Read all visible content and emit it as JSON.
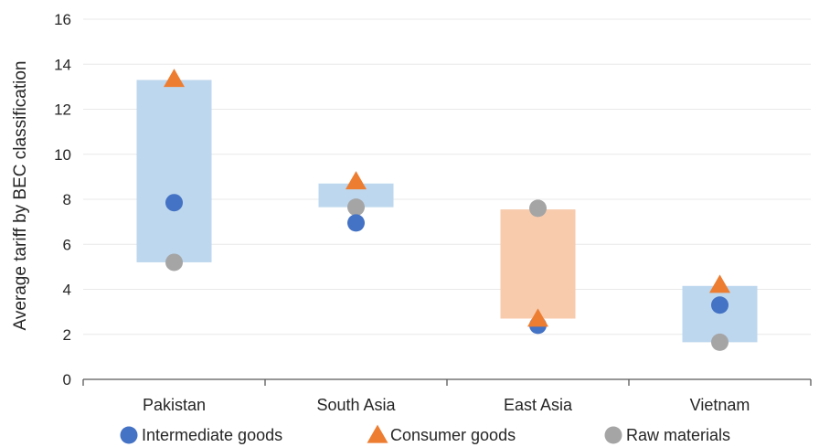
{
  "chart_data": {
    "type": "scatter",
    "title": "",
    "xlabel": "",
    "ylabel": "Average tariff by BEC classification",
    "ylim": [
      0,
      16
    ],
    "yticks": [
      0,
      2,
      4,
      6,
      8,
      10,
      12,
      14,
      16
    ],
    "grid": true,
    "legend_position": "bottom",
    "categories": [
      "Pakistan",
      "South Asia",
      "East Asia",
      "Vietnam"
    ],
    "range_bars": [
      {
        "category": "Pakistan",
        "low": 5.2,
        "high": 13.3,
        "color": "#bdd7ee"
      },
      {
        "category": "South Asia",
        "low": 7.65,
        "high": 8.7,
        "color": "#bdd7ee"
      },
      {
        "category": "East Asia",
        "low": 2.7,
        "high": 7.55,
        "color": "#f8cbad"
      },
      {
        "category": "Vietnam",
        "low": 1.65,
        "high": 4.15,
        "color": "#bdd7ee"
      }
    ],
    "series": [
      {
        "name": "Intermediate goods",
        "marker": "circle",
        "color": "#4472c4",
        "values": [
          7.85,
          6.95,
          2.4,
          3.3
        ]
      },
      {
        "name": "Consumer goods",
        "marker": "triangle",
        "color": "#ed7d31",
        "values": [
          13.3,
          8.75,
          2.65,
          4.15
        ]
      },
      {
        "name": "Raw materials",
        "marker": "circle",
        "color": "#a5a5a5",
        "values": [
          5.2,
          7.65,
          7.6,
          1.65
        ]
      }
    ]
  }
}
